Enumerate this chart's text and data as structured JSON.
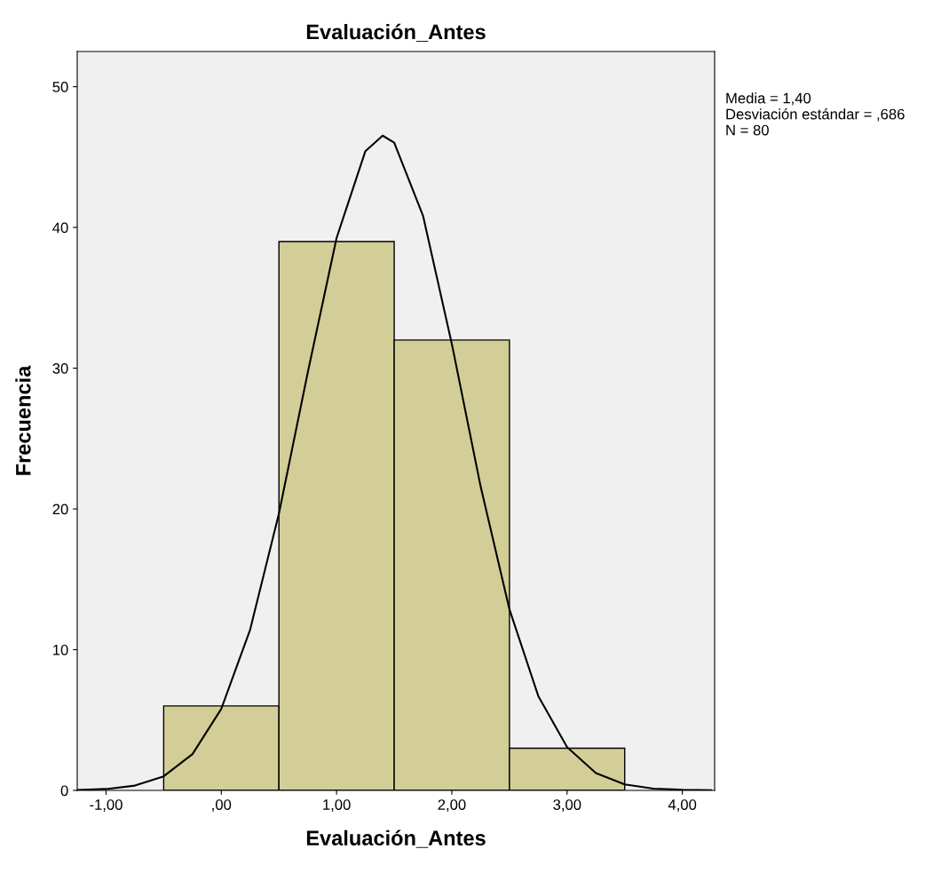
{
  "chart_data": {
    "type": "histogram",
    "title": "Evaluación_Antes",
    "xlabel": "Evaluación_Antes",
    "ylabel": "Frecuencia",
    "bins": [
      -0.5,
      0.5,
      1.5,
      2.5,
      3.5
    ],
    "values": [
      6,
      39,
      32,
      3
    ],
    "color": "#d3ce97",
    "series": [
      {
        "type": "line",
        "color": "#000000",
        "x": [
          -1.25,
          -1.0,
          -0.75,
          -0.5,
          -0.25,
          0.0,
          0.25,
          0.5,
          0.75,
          1.0,
          1.25,
          1.4,
          1.5,
          1.75,
          2.0,
          2.25,
          2.5,
          2.75,
          3.0,
          3.25,
          3.5,
          3.75,
          4.0,
          4.25
        ],
        "values": [
          0.03,
          0.1,
          0.34,
          1.0,
          2.58,
          5.8,
          11.42,
          19.67,
          29.69,
          39.25,
          45.42,
          46.52,
          46.03,
          40.84,
          31.73,
          21.59,
          12.86,
          6.71,
          3.07,
          1.23,
          0.43,
          0.13,
          0.04,
          0.01
        ]
      }
    ],
    "xlim": [
      -1.25,
      4.28
    ],
    "ylim": [
      0,
      52.5
    ],
    "xticks": [
      {
        "value": -1,
        "label": "-1,00"
      },
      {
        "value": 0,
        "label": ",00"
      },
      {
        "value": 1,
        "label": "1,00"
      },
      {
        "value": 2,
        "label": "2,00"
      },
      {
        "value": 3,
        "label": "3,00"
      },
      {
        "value": 4,
        "label": "4,00"
      }
    ],
    "yticks": [
      0,
      10,
      20,
      30,
      40,
      50
    ],
    "grid": false,
    "annotations": [
      "Media = 1,40",
      "Desviación estándar = ,686",
      "N = 80"
    ]
  }
}
